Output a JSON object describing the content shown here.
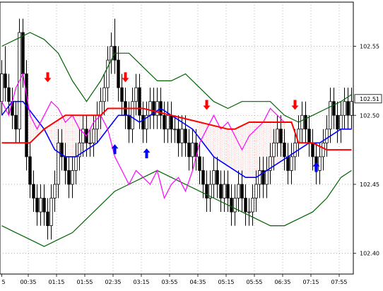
{
  "chart_data": {
    "type": "candlestick",
    "title": "",
    "xlabel": "",
    "ylabel": "",
    "ylim": [
      102.385,
      102.582
    ],
    "grid": true,
    "y_ticks": [
      "102.40",
      "102.45",
      "102.50",
      "102.55"
    ],
    "y_tick_values": [
      102.4,
      102.45,
      102.5,
      102.55
    ],
    "current_price_label": "102.51",
    "current_price": 102.512,
    "x_ticks": [
      "5",
      "00:35",
      "01:15",
      "01:55",
      "02:35",
      "03:15",
      "03:55",
      "04:35",
      "05:15",
      "05:55",
      "06:35",
      "07:15",
      "07:55"
    ],
    "x_tick_index": [
      0,
      8,
      16,
      24,
      32,
      40,
      48,
      56,
      64,
      72,
      80,
      88,
      96
    ],
    "bar_count": 100,
    "candles": [
      [
        102.51,
        102.54,
        102.5,
        102.53
      ],
      [
        102.53,
        102.55,
        102.51,
        102.52
      ],
      [
        102.52,
        102.53,
        102.5,
        102.51
      ],
      [
        102.51,
        102.52,
        102.49,
        102.5
      ],
      [
        102.5,
        102.51,
        102.48,
        102.49
      ],
      [
        102.49,
        102.57,
        102.48,
        102.56
      ],
      [
        102.56,
        102.57,
        102.52,
        102.53
      ],
      [
        102.53,
        102.54,
        102.46,
        102.47
      ],
      [
        102.47,
        102.48,
        102.44,
        102.45
      ],
      [
        102.45,
        102.46,
        102.43,
        102.44
      ],
      [
        102.44,
        102.45,
        102.42,
        102.43
      ],
      [
        102.43,
        102.45,
        102.42,
        102.44
      ],
      [
        102.44,
        102.45,
        102.42,
        102.43
      ],
      [
        102.43,
        102.44,
        102.41,
        102.42
      ],
      [
        102.42,
        102.45,
        102.41,
        102.44
      ],
      [
        102.44,
        102.46,
        102.43,
        102.45
      ],
      [
        102.45,
        102.49,
        102.44,
        102.48
      ],
      [
        102.48,
        102.49,
        102.46,
        102.47
      ],
      [
        102.47,
        102.48,
        102.45,
        102.46
      ],
      [
        102.46,
        102.47,
        102.44,
        102.45
      ],
      [
        102.45,
        102.47,
        102.44,
        102.46
      ],
      [
        102.46,
        102.48,
        102.45,
        102.47
      ],
      [
        102.47,
        102.49,
        102.46,
        102.48
      ],
      [
        102.48,
        102.5,
        102.47,
        102.49
      ],
      [
        102.49,
        102.5,
        102.47,
        102.48
      ],
      [
        102.48,
        102.49,
        102.47,
        102.48
      ],
      [
        102.48,
        102.5,
        102.47,
        102.49
      ],
      [
        102.49,
        102.51,
        102.48,
        102.5
      ],
      [
        102.5,
        102.52,
        102.49,
        102.51
      ],
      [
        102.51,
        102.53,
        102.5,
        102.52
      ],
      [
        102.52,
        102.55,
        102.51,
        102.54
      ],
      [
        102.54,
        102.56,
        102.53,
        102.55
      ],
      [
        102.55,
        102.57,
        102.53,
        102.54
      ],
      [
        102.54,
        102.55,
        102.51,
        102.52
      ],
      [
        102.52,
        102.53,
        102.5,
        102.51
      ],
      [
        102.51,
        102.52,
        102.49,
        102.5
      ],
      [
        102.5,
        102.51,
        102.48,
        102.49
      ],
      [
        102.49,
        102.52,
        102.48,
        102.51
      ],
      [
        102.51,
        102.53,
        102.5,
        102.52
      ],
      [
        102.52,
        102.53,
        102.49,
        102.5
      ],
      [
        102.5,
        102.51,
        102.48,
        102.49
      ],
      [
        102.49,
        102.51,
        102.48,
        102.5
      ],
      [
        102.5,
        102.52,
        102.49,
        102.51
      ],
      [
        102.51,
        102.52,
        102.49,
        102.5
      ],
      [
        102.5,
        102.52,
        102.49,
        102.51
      ],
      [
        102.51,
        102.52,
        102.49,
        102.5
      ],
      [
        102.5,
        102.51,
        102.48,
        102.49
      ],
      [
        102.49,
        102.51,
        102.48,
        102.5
      ],
      [
        102.5,
        102.51,
        102.48,
        102.49
      ],
      [
        102.49,
        102.5,
        102.48,
        102.49
      ],
      [
        102.49,
        102.5,
        102.47,
        102.48
      ],
      [
        102.48,
        102.5,
        102.47,
        102.49
      ],
      [
        102.49,
        102.5,
        102.47,
        102.48
      ],
      [
        102.48,
        102.49,
        102.46,
        102.47
      ],
      [
        102.47,
        102.49,
        102.46,
        102.48
      ],
      [
        102.48,
        102.49,
        102.46,
        102.47
      ],
      [
        102.47,
        102.48,
        102.45,
        102.46
      ],
      [
        102.46,
        102.47,
        102.44,
        102.45
      ],
      [
        102.45,
        102.46,
        102.43,
        102.44
      ],
      [
        102.44,
        102.46,
        102.43,
        102.45
      ],
      [
        102.45,
        102.47,
        102.44,
        102.46
      ],
      [
        102.46,
        102.47,
        102.44,
        102.45
      ],
      [
        102.45,
        102.46,
        102.43,
        102.44
      ],
      [
        102.44,
        102.46,
        102.43,
        102.45
      ],
      [
        102.45,
        102.46,
        102.43,
        102.44
      ],
      [
        102.44,
        102.45,
        102.42,
        102.43
      ],
      [
        102.43,
        102.45,
        102.42,
        102.44
      ],
      [
        102.44,
        102.46,
        102.43,
        102.45
      ],
      [
        102.45,
        102.46,
        102.43,
        102.44
      ],
      [
        102.44,
        102.45,
        102.42,
        102.43
      ],
      [
        102.43,
        102.44,
        102.42,
        102.43
      ],
      [
        102.43,
        102.45,
        102.42,
        102.44
      ],
      [
        102.44,
        102.46,
        102.43,
        102.45
      ],
      [
        102.45,
        102.47,
        102.44,
        102.46
      ],
      [
        102.46,
        102.47,
        102.44,
        102.45
      ],
      [
        102.45,
        102.47,
        102.44,
        102.46
      ],
      [
        102.46,
        102.48,
        102.45,
        102.47
      ],
      [
        102.47,
        102.49,
        102.46,
        102.48
      ],
      [
        102.48,
        102.5,
        102.47,
        102.49
      ],
      [
        102.49,
        102.5,
        102.47,
        102.48
      ],
      [
        102.48,
        102.49,
        102.46,
        102.47
      ],
      [
        102.47,
        102.48,
        102.45,
        102.46
      ],
      [
        102.46,
        102.48,
        102.45,
        102.47
      ],
      [
        102.47,
        102.49,
        102.46,
        102.48
      ],
      [
        102.48,
        102.5,
        102.47,
        102.49
      ],
      [
        102.49,
        102.51,
        102.48,
        102.5
      ],
      [
        102.5,
        102.51,
        102.48,
        102.49
      ],
      [
        102.49,
        102.5,
        102.47,
        102.48
      ],
      [
        102.48,
        102.49,
        102.46,
        102.47
      ],
      [
        102.47,
        102.48,
        102.45,
        102.46
      ],
      [
        102.46,
        102.48,
        102.45,
        102.47
      ],
      [
        102.47,
        102.49,
        102.46,
        102.48
      ],
      [
        102.48,
        102.5,
        102.47,
        102.49
      ],
      [
        102.49,
        102.52,
        102.48,
        102.51
      ],
      [
        102.51,
        102.52,
        102.49,
        102.5
      ],
      [
        102.5,
        102.51,
        102.48,
        102.49
      ],
      [
        102.49,
        102.51,
        102.48,
        102.5
      ],
      [
        102.5,
        102.52,
        102.49,
        102.51
      ],
      [
        102.51,
        102.52,
        102.49,
        102.5
      ],
      [
        102.5,
        102.52,
        102.49,
        102.51
      ]
    ],
    "series": [
      {
        "type": "line",
        "color": "#006400",
        "points": [
          [
            0,
            102.55
          ],
          [
            4,
            102.555
          ],
          [
            8,
            102.56
          ],
          [
            12,
            102.555
          ],
          [
            16,
            102.545
          ],
          [
            20,
            102.525
          ],
          [
            24,
            102.51
          ],
          [
            28,
            102.525
          ],
          [
            32,
            102.545
          ],
          [
            36,
            102.545
          ],
          [
            40,
            102.535
          ],
          [
            44,
            102.525
          ],
          [
            48,
            102.525
          ],
          [
            52,
            102.53
          ],
          [
            56,
            102.52
          ],
          [
            60,
            102.51
          ],
          [
            64,
            102.505
          ],
          [
            68,
            102.51
          ],
          [
            72,
            102.51
          ],
          [
            76,
            102.51
          ],
          [
            80,
            102.5
          ],
          [
            84,
            102.495
          ],
          [
            88,
            102.5
          ],
          [
            92,
            102.505
          ],
          [
            96,
            102.51
          ],
          [
            99,
            102.515
          ]
        ]
      },
      {
        "type": "line",
        "color": "#006400",
        "points": [
          [
            0,
            102.42
          ],
          [
            4,
            102.415
          ],
          [
            8,
            102.41
          ],
          [
            12,
            102.405
          ],
          [
            16,
            102.41
          ],
          [
            20,
            102.415
          ],
          [
            24,
            102.425
          ],
          [
            28,
            102.435
          ],
          [
            32,
            102.445
          ],
          [
            36,
            102.45
          ],
          [
            40,
            102.455
          ],
          [
            44,
            102.46
          ],
          [
            48,
            102.455
          ],
          [
            52,
            102.45
          ],
          [
            56,
            102.445
          ],
          [
            60,
            102.44
          ],
          [
            64,
            102.435
          ],
          [
            68,
            102.43
          ],
          [
            72,
            102.425
          ],
          [
            76,
            102.42
          ],
          [
            80,
            102.42
          ],
          [
            84,
            102.425
          ],
          [
            88,
            102.43
          ],
          [
            92,
            102.44
          ],
          [
            96,
            102.455
          ],
          [
            99,
            102.46
          ]
        ]
      },
      {
        "type": "line",
        "color": "#0000ff",
        "points": [
          [
            0,
            102.5
          ],
          [
            3,
            102.51
          ],
          [
            6,
            102.51
          ],
          [
            9,
            102.5
          ],
          [
            12,
            102.49
          ],
          [
            15,
            102.475
          ],
          [
            18,
            102.47
          ],
          [
            21,
            102.47
          ],
          [
            24,
            102.475
          ],
          [
            27,
            102.48
          ],
          [
            30,
            102.49
          ],
          [
            33,
            102.5
          ],
          [
            36,
            102.5
          ],
          [
            39,
            102.495
          ],
          [
            42,
            102.5
          ],
          [
            45,
            102.505
          ],
          [
            48,
            102.5
          ],
          [
            51,
            102.495
          ],
          [
            54,
            102.49
          ],
          [
            57,
            102.48
          ],
          [
            60,
            102.47
          ],
          [
            63,
            102.465
          ],
          [
            66,
            102.46
          ],
          [
            69,
            102.455
          ],
          [
            72,
            102.455
          ],
          [
            75,
            102.46
          ],
          [
            78,
            102.465
          ],
          [
            81,
            102.47
          ],
          [
            84,
            102.475
          ],
          [
            87,
            102.48
          ],
          [
            90,
            102.48
          ],
          [
            93,
            102.485
          ],
          [
            96,
            102.49
          ],
          [
            99,
            102.49
          ]
        ]
      },
      {
        "type": "line",
        "color": "#ff00ff",
        "points": [
          [
            0,
            102.51
          ],
          [
            2,
            102.5
          ],
          [
            4,
            102.52
          ],
          [
            6,
            102.53
          ],
          [
            8,
            102.5
          ],
          [
            10,
            102.49
          ],
          [
            12,
            102.5
          ],
          [
            14,
            102.51
          ],
          [
            16,
            102.505
          ],
          [
            18,
            102.495
          ],
          [
            20,
            102.5
          ],
          [
            22,
            102.49
          ],
          [
            24,
            102.485
          ],
          [
            26,
            102.495
          ],
          [
            28,
            102.5
          ],
          [
            30,
            102.49
          ],
          [
            32,
            102.47
          ],
          [
            34,
            102.46
          ],
          [
            36,
            102.45
          ],
          [
            38,
            102.46
          ],
          [
            40,
            102.455
          ],
          [
            42,
            102.45
          ],
          [
            44,
            102.46
          ],
          [
            46,
            102.44
          ],
          [
            48,
            102.45
          ],
          [
            50,
            102.455
          ],
          [
            52,
            102.445
          ],
          [
            54,
            102.46
          ],
          [
            56,
            102.48
          ],
          [
            58,
            102.49
          ],
          [
            60,
            102.5
          ],
          [
            62,
            102.49
          ],
          [
            64,
            102.495
          ],
          [
            66,
            102.485
          ],
          [
            68,
            102.475
          ],
          [
            70,
            102.485
          ],
          [
            72,
            102.49
          ],
          [
            74,
            102.495
          ],
          [
            76,
            102.505
          ],
          [
            78,
            102.5
          ],
          [
            80,
            102.495
          ]
        ]
      },
      {
        "type": "line",
        "color": "#ff0000",
        "points": [
          [
            0,
            102.48
          ],
          [
            8,
            102.48
          ],
          [
            12,
            102.49
          ],
          [
            18,
            102.5
          ],
          [
            28,
            102.5
          ],
          [
            30,
            102.505
          ],
          [
            40,
            102.505
          ],
          [
            48,
            102.5
          ],
          [
            56,
            102.495
          ],
          [
            64,
            102.49
          ],
          [
            66,
            102.49
          ],
          [
            70,
            102.495
          ],
          [
            80,
            102.495
          ],
          [
            82,
            102.495
          ],
          [
            84,
            102.48
          ],
          [
            88,
            102.48
          ],
          [
            92,
            102.475
          ],
          [
            99,
            102.475
          ]
        ]
      }
    ],
    "bollinger_fill": {
      "color": "#ff4444",
      "between": [
        2,
        4
      ],
      "ranges": [
        [
          8,
          28
        ],
        [
          56,
          80
        ]
      ]
    },
    "signals": [
      {
        "type": "sell",
        "color": "#ff0000",
        "x": 13,
        "y": 102.525
      },
      {
        "type": "sell",
        "color": "#ff0000",
        "x": 35,
        "y": 102.525
      },
      {
        "type": "buy",
        "color": "#0000ff",
        "x": 32,
        "y": 102.478
      },
      {
        "type": "buy",
        "color": "#0000ff",
        "x": 41,
        "y": 102.475
      },
      {
        "type": "sell",
        "color": "#ff0000",
        "x": 58,
        "y": 102.505
      },
      {
        "type": "sell",
        "color": "#ff0000",
        "x": 83,
        "y": 102.505
      },
      {
        "type": "buy",
        "color": "#0000ff",
        "x": 89,
        "y": 102.465
      }
    ]
  }
}
